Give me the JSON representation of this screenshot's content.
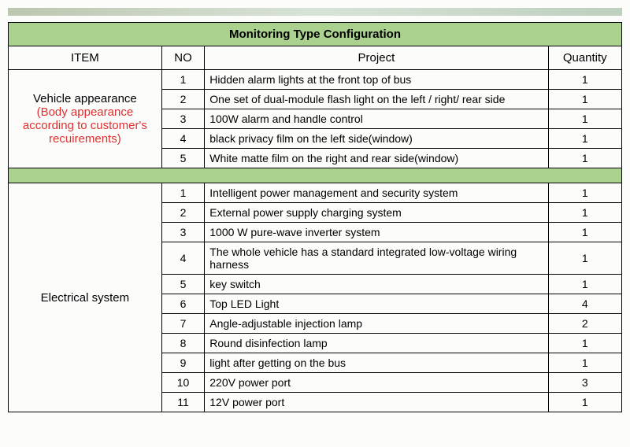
{
  "title": "Monitoring Type Configuration",
  "columns": {
    "item": "ITEM",
    "no": "NO",
    "project": "Project",
    "quantity": "Quantity"
  },
  "sections": [
    {
      "item": {
        "line1": "Vehicle appearance",
        "rest": "(Body appearance according to customer's recuirements)"
      },
      "rows": [
        {
          "no": "1",
          "project": "Hidden alarm lights at the front top of bus",
          "qty": "1"
        },
        {
          "no": "2",
          "project": "One set of dual-module flash light on the left / right/ rear side",
          "qty": "1"
        },
        {
          "no": "3",
          "project": "100W alarm and handle control",
          "qty": "1"
        },
        {
          "no": "4",
          "project": "black privacy film on the left side(window)",
          "qty": "1"
        },
        {
          "no": "5",
          "project": "White matte film on the right and rear side(window)",
          "qty": "1"
        }
      ]
    },
    {
      "item": {
        "line1": "Electrical system",
        "rest": ""
      },
      "rows": [
        {
          "no": "1",
          "project": "Intelligent power management and security system",
          "qty": "1"
        },
        {
          "no": "2",
          "project": "External power supply charging system",
          "qty": "1"
        },
        {
          "no": "3",
          "project": "1000 W pure-wave inverter system",
          "qty": "1"
        },
        {
          "no": "4",
          "project": "The whole vehicle has a standard integrated low-voltage wiring harness",
          "qty": "1"
        },
        {
          "no": "5",
          "project": "key switch",
          "qty": "1"
        },
        {
          "no": "6",
          "project": "Top LED Light",
          "qty": "4"
        },
        {
          "no": "7",
          "project": "Angle-adjustable injection lamp",
          "qty": "2"
        },
        {
          "no": "8",
          "project": "Round disinfection lamp",
          "qty": "1"
        },
        {
          "no": "9",
          "project": "light after getting on the bus",
          "qty": "1"
        },
        {
          "no": "10",
          "project": "220V power port",
          "qty": "3"
        },
        {
          "no": "11",
          "project": "12V power port",
          "qty": "1"
        }
      ]
    }
  ],
  "style": {
    "header_bg": "#abd18e",
    "border_color": "#000000",
    "red_text": "#e03030",
    "font_size": 14,
    "title_font_size": 15
  }
}
